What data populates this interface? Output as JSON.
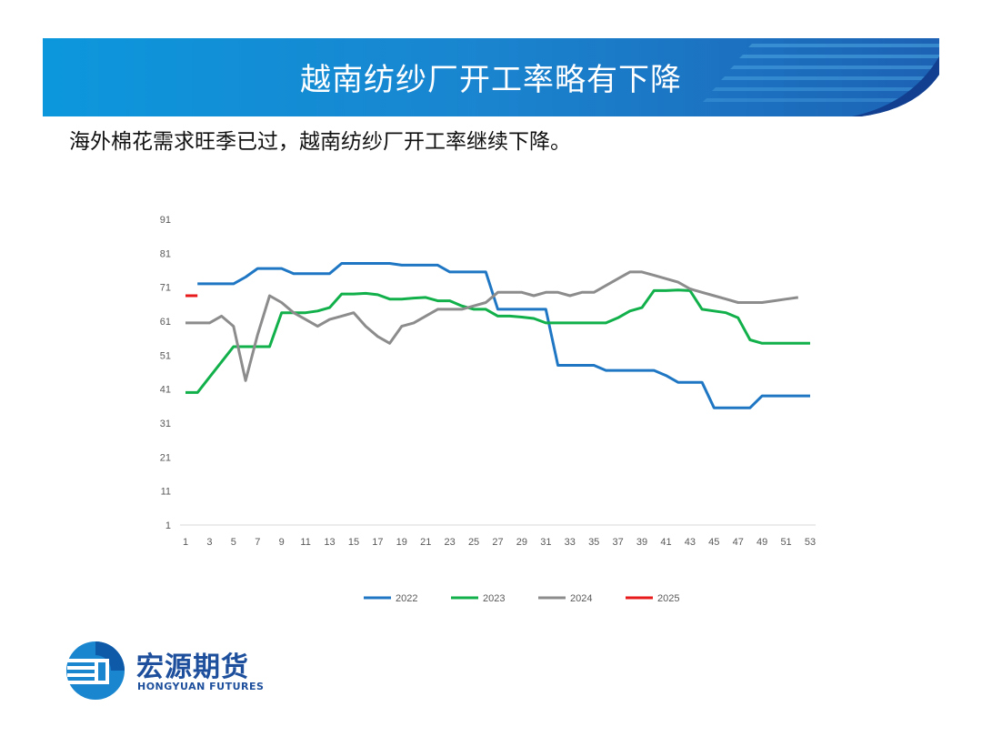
{
  "header": {
    "title": "越南纺纱厂开工率略有下降"
  },
  "summary": {
    "text": "海外棉花需求旺季已过，越南纺纱厂开工率继续下降。"
  },
  "brand": {
    "logo_cn": "宏源期货",
    "logo_en": "HONGYUAN FUTURES",
    "color": "#1d4f9c"
  },
  "chart_data": {
    "type": "line",
    "x_ticks": [
      1,
      3,
      5,
      7,
      9,
      11,
      13,
      15,
      17,
      19,
      21,
      23,
      25,
      27,
      29,
      31,
      33,
      35,
      37,
      39,
      41,
      43,
      45,
      47,
      49,
      51,
      53
    ],
    "y_ticks": [
      1,
      11,
      21,
      31,
      41,
      51,
      61,
      71,
      81,
      91
    ],
    "xlim": [
      1,
      53
    ],
    "ylim": [
      1,
      91
    ],
    "grid": false,
    "legend_position": "bottom",
    "series": [
      {
        "name": "2022",
        "color": "#1f77c4",
        "points": [
          [
            2,
            72
          ],
          [
            3,
            72
          ],
          [
            4,
            72
          ],
          [
            5,
            72
          ],
          [
            6,
            74
          ],
          [
            7,
            76.5
          ],
          [
            8,
            76.5
          ],
          [
            9,
            76.5
          ],
          [
            10,
            75
          ],
          [
            11,
            75
          ],
          [
            12,
            75
          ],
          [
            13,
            75
          ],
          [
            14,
            78
          ],
          [
            15,
            78
          ],
          [
            16,
            78
          ],
          [
            17,
            78
          ],
          [
            18,
            78
          ],
          [
            19,
            77.5
          ],
          [
            20,
            77.5
          ],
          [
            21,
            77.5
          ],
          [
            22,
            77.5
          ],
          [
            23,
            75.5
          ],
          [
            24,
            75.5
          ],
          [
            25,
            75.5
          ],
          [
            26,
            75.5
          ],
          [
            27,
            64.5
          ],
          [
            28,
            64.5
          ],
          [
            29,
            64.5
          ],
          [
            30,
            64.5
          ],
          [
            31,
            64.5
          ],
          [
            32,
            48
          ],
          [
            33,
            48
          ],
          [
            34,
            48
          ],
          [
            35,
            48
          ],
          [
            36,
            46.5
          ],
          [
            37,
            46.5
          ],
          [
            38,
            46.5
          ],
          [
            39,
            46.5
          ],
          [
            40,
            46.5
          ],
          [
            41,
            45
          ],
          [
            42,
            43
          ],
          [
            43,
            43
          ],
          [
            44,
            43
          ],
          [
            45,
            35.5
          ],
          [
            46,
            35.5
          ],
          [
            47,
            35.5
          ],
          [
            48,
            35.5
          ],
          [
            49,
            39
          ],
          [
            50,
            39
          ],
          [
            51,
            39
          ],
          [
            52,
            39
          ],
          [
            53,
            39
          ]
        ]
      },
      {
        "name": "2023",
        "color": "#12b04b",
        "points": [
          [
            1,
            40
          ],
          [
            2,
            40
          ],
          [
            3,
            44.5
          ],
          [
            4,
            49
          ],
          [
            5,
            53.5
          ],
          [
            6,
            53.5
          ],
          [
            7,
            53.5
          ],
          [
            8,
            53.5
          ],
          [
            9,
            63.5
          ],
          [
            10,
            63.5
          ],
          [
            11,
            63.5
          ],
          [
            12,
            64
          ],
          [
            13,
            65
          ],
          [
            14,
            69
          ],
          [
            15,
            69
          ],
          [
            16,
            69.2
          ],
          [
            17,
            68.8
          ],
          [
            18,
            67.5
          ],
          [
            19,
            67.5
          ],
          [
            20,
            67.8
          ],
          [
            21,
            68
          ],
          [
            22,
            67
          ],
          [
            23,
            67
          ],
          [
            24,
            65.5
          ],
          [
            25,
            64.5
          ],
          [
            26,
            64.5
          ],
          [
            27,
            62.5
          ],
          [
            28,
            62.5
          ],
          [
            29,
            62.2
          ],
          [
            30,
            61.8
          ],
          [
            31,
            60.5
          ],
          [
            32,
            60.5
          ],
          [
            33,
            60.5
          ],
          [
            34,
            60.5
          ],
          [
            35,
            60.5
          ],
          [
            36,
            60.5
          ],
          [
            37,
            62
          ],
          [
            38,
            64
          ],
          [
            39,
            65
          ],
          [
            40,
            70
          ],
          [
            41,
            70
          ],
          [
            42,
            70.2
          ],
          [
            43,
            70
          ],
          [
            44,
            64.5
          ],
          [
            45,
            64
          ],
          [
            46,
            63.5
          ],
          [
            47,
            62
          ],
          [
            48,
            55.5
          ],
          [
            49,
            54.5
          ],
          [
            50,
            54.5
          ],
          [
            51,
            54.5
          ],
          [
            52,
            54.5
          ],
          [
            53,
            54.5
          ]
        ]
      },
      {
        "name": "2024",
        "color": "#8c8c8c",
        "points": [
          [
            1,
            60.5
          ],
          [
            2,
            60.5
          ],
          [
            3,
            60.5
          ],
          [
            4,
            62.5
          ],
          [
            5,
            59.5
          ],
          [
            6,
            43.5
          ],
          [
            7,
            57
          ],
          [
            8,
            68.5
          ],
          [
            9,
            66.5
          ],
          [
            10,
            63.5
          ],
          [
            11,
            61.5
          ],
          [
            12,
            59.5
          ],
          [
            13,
            61.5
          ],
          [
            14,
            62.5
          ],
          [
            15,
            63.5
          ],
          [
            16,
            59.5
          ],
          [
            17,
            56.5
          ],
          [
            18,
            54.5
          ],
          [
            19,
            59.5
          ],
          [
            20,
            60.5
          ],
          [
            21,
            62.5
          ],
          [
            22,
            64.5
          ],
          [
            23,
            64.5
          ],
          [
            24,
            64.5
          ],
          [
            25,
            65.5
          ],
          [
            26,
            66.5
          ],
          [
            27,
            69.5
          ],
          [
            28,
            69.5
          ],
          [
            29,
            69.5
          ],
          [
            30,
            68.5
          ],
          [
            31,
            69.5
          ],
          [
            32,
            69.5
          ],
          [
            33,
            68.5
          ],
          [
            34,
            69.5
          ],
          [
            35,
            69.5
          ],
          [
            36,
            71.5
          ],
          [
            37,
            73.5
          ],
          [
            38,
            75.5
          ],
          [
            39,
            75.5
          ],
          [
            40,
            74.5
          ],
          [
            41,
            73.5
          ],
          [
            42,
            72.5
          ],
          [
            43,
            70.5
          ],
          [
            44,
            69.5
          ],
          [
            45,
            68.5
          ],
          [
            46,
            67.5
          ],
          [
            47,
            66.5
          ],
          [
            48,
            66.5
          ],
          [
            49,
            66.5
          ],
          [
            50,
            67
          ],
          [
            51,
            67.5
          ],
          [
            52,
            68
          ]
        ]
      },
      {
        "name": "2025",
        "color": "#e8191a",
        "points": [
          [
            1,
            68.5
          ],
          [
            2,
            68.5
          ]
        ]
      }
    ]
  }
}
